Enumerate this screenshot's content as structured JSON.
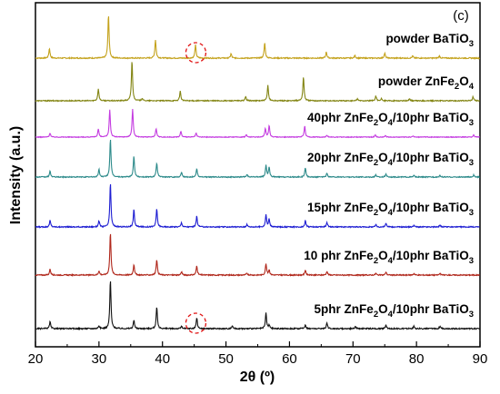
{
  "chart_data": {
    "type": "line",
    "panel_label": "(c)",
    "xlabel": "2θ (º)",
    "ylabel": "Intensity (a.u.)",
    "xlim": [
      20,
      90
    ],
    "x_ticks": [
      "20",
      "30",
      "40",
      "50",
      "60",
      "70",
      "80",
      "90"
    ],
    "grid": false,
    "legend": "none",
    "series": [
      {
        "name_parts": [
          [
            "powder BaTiO",
            "n"
          ],
          [
            "3",
            "sub"
          ]
        ],
        "color": "#c4a21c",
        "peaks": [
          [
            22.2,
            0.22
          ],
          [
            31.5,
            1.0
          ],
          [
            38.9,
            0.42
          ],
          [
            45.2,
            0.3
          ],
          [
            50.8,
            0.1
          ],
          [
            56.1,
            0.35
          ],
          [
            65.8,
            0.14
          ],
          [
            70.3,
            0.06
          ],
          [
            75.0,
            0.11
          ],
          [
            79.4,
            0.05
          ],
          [
            83.6,
            0.05
          ]
        ]
      },
      {
        "name_parts": [
          [
            "powder ZnFe",
            "n"
          ],
          [
            "2",
            "sub"
          ],
          [
            "O",
            "n"
          ],
          [
            "4",
            "sub"
          ]
        ],
        "color": "#838513",
        "peaks": [
          [
            29.9,
            0.3
          ],
          [
            35.2,
            1.0
          ],
          [
            36.8,
            0.06
          ],
          [
            42.8,
            0.24
          ],
          [
            53.1,
            0.1
          ],
          [
            56.6,
            0.38
          ],
          [
            62.2,
            0.6
          ],
          [
            70.7,
            0.05
          ],
          [
            73.6,
            0.12
          ],
          [
            74.5,
            0.05
          ],
          [
            78.9,
            0.05
          ],
          [
            88.9,
            0.1
          ]
        ]
      },
      {
        "name_parts": [
          [
            "40phr ZnFe",
            "n"
          ],
          [
            "2",
            "sub"
          ],
          [
            "O",
            "n"
          ],
          [
            "4",
            "sub"
          ],
          [
            "/10phr BaTiO",
            "n"
          ],
          [
            "3",
            "sub"
          ]
        ],
        "color": "#c43ce0",
        "peaks": [
          [
            22.3,
            0.14
          ],
          [
            29.9,
            0.28
          ],
          [
            31.7,
            0.95
          ],
          [
            35.3,
            0.97
          ],
          [
            39.0,
            0.3
          ],
          [
            42.9,
            0.2
          ],
          [
            45.3,
            0.14
          ],
          [
            53.2,
            0.08
          ],
          [
            56.2,
            0.3
          ],
          [
            56.8,
            0.4
          ],
          [
            62.4,
            0.38
          ],
          [
            65.9,
            0.07
          ],
          [
            73.5,
            0.07
          ],
          [
            75.1,
            0.06
          ],
          [
            79.5,
            0.04
          ],
          [
            89.0,
            0.07
          ]
        ]
      },
      {
        "name_parts": [
          [
            "20phr ZnFe",
            "n"
          ],
          [
            "2",
            "sub"
          ],
          [
            "O",
            "n"
          ],
          [
            "4",
            "sub"
          ],
          [
            "/10phr BaTiO",
            "n"
          ],
          [
            "3",
            "sub"
          ]
        ],
        "color": "#2c8a8a",
        "peaks": [
          [
            22.3,
            0.15
          ],
          [
            30.0,
            0.2
          ],
          [
            31.8,
            1.0
          ],
          [
            35.5,
            0.55
          ],
          [
            39.1,
            0.37
          ],
          [
            43.0,
            0.13
          ],
          [
            45.4,
            0.22
          ],
          [
            53.3,
            0.07
          ],
          [
            56.3,
            0.3
          ],
          [
            56.8,
            0.26
          ],
          [
            62.5,
            0.24
          ],
          [
            65.9,
            0.1
          ],
          [
            73.6,
            0.06
          ],
          [
            75.2,
            0.08
          ],
          [
            79.6,
            0.04
          ],
          [
            83.7,
            0.04
          ],
          [
            89.0,
            0.05
          ]
        ]
      },
      {
        "name_parts": [
          [
            "15phr ZnFe",
            "n"
          ],
          [
            "2",
            "sub"
          ],
          [
            "O",
            "n"
          ],
          [
            "4",
            "sub"
          ],
          [
            "/10phr BaTiO",
            "n"
          ],
          [
            "3",
            "sub"
          ]
        ],
        "color": "#1e1ed2",
        "peaks": [
          [
            22.3,
            0.15
          ],
          [
            30.0,
            0.14
          ],
          [
            31.8,
            1.0
          ],
          [
            35.5,
            0.4
          ],
          [
            39.1,
            0.42
          ],
          [
            43.0,
            0.1
          ],
          [
            45.4,
            0.25
          ],
          [
            53.3,
            0.06
          ],
          [
            56.3,
            0.28
          ],
          [
            56.8,
            0.18
          ],
          [
            62.5,
            0.15
          ],
          [
            65.9,
            0.1
          ],
          [
            73.6,
            0.05
          ],
          [
            75.2,
            0.08
          ],
          [
            79.6,
            0.04
          ],
          [
            83.7,
            0.04
          ]
        ]
      },
      {
        "name_parts": [
          [
            "10 phr ZnFe",
            "n"
          ],
          [
            "2",
            "sub"
          ],
          [
            "O",
            "n"
          ],
          [
            "4",
            "sub"
          ],
          [
            "/10phr BaTiO",
            "n"
          ],
          [
            "3",
            "sub"
          ]
        ],
        "color": "#b0271b",
        "peaks": [
          [
            22.3,
            0.14
          ],
          [
            30.0,
            0.1
          ],
          [
            31.8,
            1.0
          ],
          [
            35.5,
            0.25
          ],
          [
            39.1,
            0.37
          ],
          [
            43.0,
            0.08
          ],
          [
            45.4,
            0.22
          ],
          [
            53.3,
            0.05
          ],
          [
            56.3,
            0.27
          ],
          [
            56.8,
            0.12
          ],
          [
            62.5,
            0.12
          ],
          [
            65.9,
            0.09
          ],
          [
            73.6,
            0.04
          ],
          [
            75.2,
            0.07
          ],
          [
            79.6,
            0.04
          ],
          [
            83.7,
            0.04
          ]
        ]
      },
      {
        "name_parts": [
          [
            "5phr ZnFe",
            "n"
          ],
          [
            "2",
            "sub"
          ],
          [
            "O",
            "n"
          ],
          [
            "4",
            "sub"
          ],
          [
            "/10phr BaTiO",
            "n"
          ],
          [
            "3",
            "sub"
          ]
        ],
        "color": "#111111",
        "peaks": [
          [
            22.3,
            0.14
          ],
          [
            30.0,
            0.06
          ],
          [
            31.8,
            1.0
          ],
          [
            35.5,
            0.17
          ],
          [
            39.1,
            0.44
          ],
          [
            43.0,
            0.05
          ],
          [
            45.4,
            0.22
          ],
          [
            51.0,
            0.06
          ],
          [
            56.3,
            0.32
          ],
          [
            56.8,
            0.07
          ],
          [
            62.5,
            0.08
          ],
          [
            65.9,
            0.12
          ],
          [
            70.4,
            0.04
          ],
          [
            75.2,
            0.08
          ],
          [
            79.6,
            0.05
          ],
          [
            83.7,
            0.05
          ]
        ]
      }
    ],
    "annotations": [
      {
        "type": "dashed-circle",
        "color": "#e01010",
        "x": 45.4,
        "series_index": 0
      },
      {
        "type": "dashed-circle",
        "color": "#e01010",
        "x": 45.4,
        "series_index": 6
      }
    ]
  }
}
